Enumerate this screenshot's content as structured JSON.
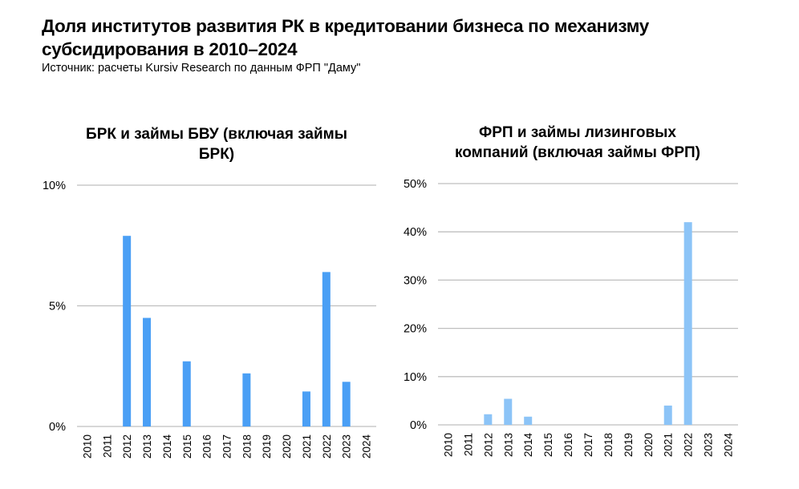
{
  "header": {
    "title_line1": "Доля институтов развития РК в кредитовании бизнеса по механизму",
    "title_line2": "субсидирования в 2010–2024",
    "source": "Источник: расчеты Kursiv Research по данным ФРП \"Даму\""
  },
  "chart_data": [
    {
      "type": "bar",
      "title_line1": "БРК и займы БВУ (включая займы",
      "title_line2": "БРК)",
      "categories": [
        "2010",
        "2011",
        "2012",
        "2013",
        "2014",
        "2015",
        "2016",
        "2017",
        "2018",
        "2019",
        "2020",
        "2021",
        "2022",
        "2023",
        "2024"
      ],
      "series": [
        {
          "values": [
            0,
            0,
            7.9,
            4.5,
            0,
            2.7,
            0,
            0,
            2.2,
            0,
            0,
            1.45,
            6.4,
            1.85,
            0
          ]
        }
      ],
      "ylim": [
        0,
        10
      ],
      "yticks": [
        0,
        5,
        10
      ],
      "ytick_labels": [
        "0%",
        "5%",
        "10%"
      ],
      "grid": true,
      "color": "#4a9ff5"
    },
    {
      "type": "bar",
      "title_line1": "ФРП и займы лизинговых",
      "title_line2": "компаний (включая займы ФРП)",
      "categories": [
        "2010",
        "2011",
        "2012",
        "2013",
        "2014",
        "2015",
        "2016",
        "2017",
        "2018",
        "2019",
        "2020",
        "2021",
        "2022",
        "2023",
        "2024"
      ],
      "series": [
        {
          "values": [
            0,
            0,
            2.2,
            5.4,
            1.7,
            0,
            0,
            0,
            0,
            0,
            0,
            4.0,
            42.0,
            0,
            0
          ]
        }
      ],
      "ylim": [
        0,
        50
      ],
      "yticks": [
        0,
        10,
        20,
        30,
        40,
        50
      ],
      "ytick_labels": [
        "0%",
        "10%",
        "20%",
        "30%",
        "40%",
        "50%"
      ],
      "grid": true,
      "color": "#8cc4f7"
    }
  ]
}
